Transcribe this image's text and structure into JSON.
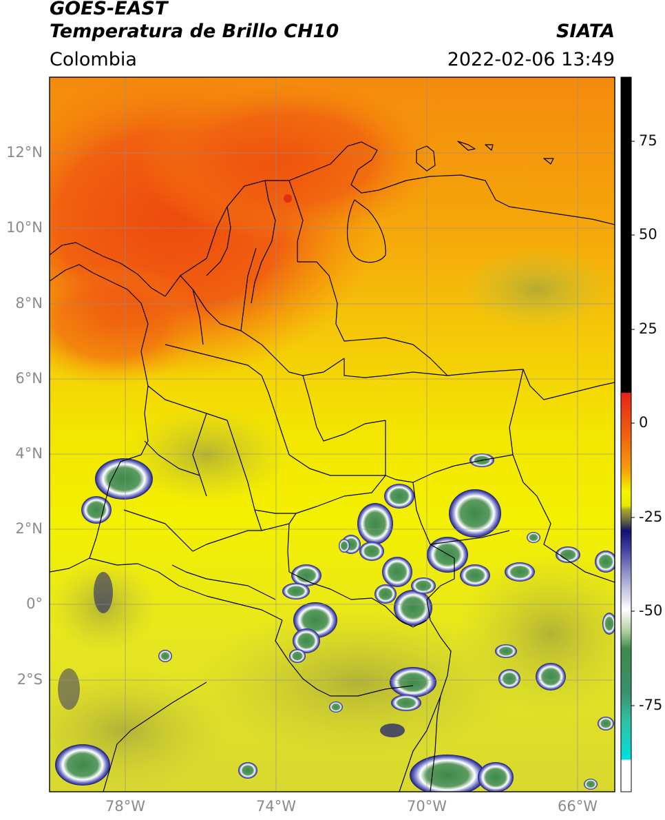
{
  "header": {
    "satellite": "GOES-EAST",
    "product": "Temperatura de Brillo CH10",
    "region": "Colombia",
    "organization": "SIATA",
    "timestamp": "2022-02-06 13:49"
  },
  "map": {
    "lat_ticks": [
      "12°N",
      "10°N",
      "8°N",
      "6°N",
      "4°N",
      "2°N",
      "0°",
      "2°S"
    ],
    "lon_ticks": [
      "78°W",
      "74°W",
      "70°W",
      "66°W"
    ],
    "extent": {
      "lon_min": -80,
      "lon_max": -65,
      "lat_min": -5,
      "lat_max": 14
    }
  },
  "colorbar": {
    "ticks": [
      "75",
      "50",
      "25",
      "0",
      "-25",
      "-50",
      "-75"
    ],
    "colors": {
      "black": "#000000",
      "red": "#e8231a",
      "orange": "#f08a10",
      "yellow": "#f5f500",
      "olive": "#a8a830",
      "navy": "#101070",
      "white": "#ffffff",
      "green": "#3f8a4a",
      "teal": "#30c0a0",
      "cyan": "#00e0e0"
    }
  }
}
